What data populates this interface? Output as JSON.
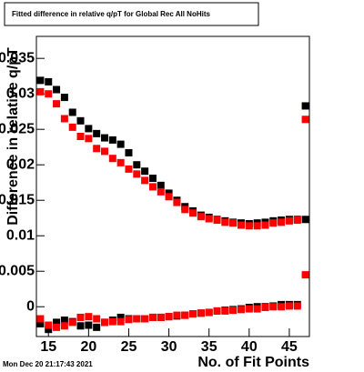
{
  "chart_data": {
    "type": "scatter",
    "title": "Fitted difference in relative q/pT for Global Rec All NoHits",
    "x_label": "No. of Fit Points",
    "y_label": "Difference in relative q/pT",
    "timestamp": "Mon Dec 20 21:17:43 2021",
    "x": [
      14,
      15,
      16,
      17,
      18,
      19,
      20,
      21,
      22,
      23,
      24,
      25,
      26,
      27,
      28,
      29,
      30,
      31,
      32,
      33,
      34,
      35,
      36,
      37,
      38,
      39,
      40,
      41,
      42,
      43,
      44,
      45,
      46,
      47
    ],
    "series": [
      {
        "color": "#000000",
        "values": [
          0.0319,
          0.0317,
          0.0306,
          0.0295,
          0.0274,
          0.0262,
          0.0251,
          0.0244,
          0.0238,
          0.0235,
          0.0229,
          0.0217,
          0.02,
          0.0191,
          0.0181,
          0.0171,
          0.016,
          0.015,
          0.0141,
          0.0135,
          0.0129,
          0.0126,
          0.0123,
          0.0121,
          0.0119,
          0.0118,
          0.0117,
          0.0118,
          0.0119,
          0.0121,
          0.0122,
          0.0123,
          0.0123,
          0.0283
        ]
      },
      {
        "color": "#ff0000",
        "values": [
          0.0303,
          0.03,
          0.0286,
          0.0265,
          0.0253,
          0.024,
          0.0237,
          0.0223,
          0.0219,
          0.0209,
          0.0203,
          0.0194,
          0.0187,
          0.0178,
          0.0169,
          0.0162,
          0.0155,
          0.0147,
          0.0137,
          0.0132,
          0.0127,
          0.0124,
          0.0122,
          0.0119,
          0.0118,
          0.0115,
          0.0114,
          0.0114,
          0.0115,
          0.0118,
          0.0119,
          0.0121,
          0.0122,
          0.0264
        ]
      },
      {
        "color": "#000000",
        "values": [
          -0.0024,
          -0.0032,
          -0.0022,
          -0.0019,
          -0.0021,
          -0.0027,
          -0.0026,
          -0.0029,
          -0.0022,
          -0.0019,
          -0.0015,
          -0.0017,
          -0.0017,
          -0.0017,
          -0.0015,
          -0.0015,
          -0.0014,
          -0.0013,
          -0.0012,
          -0.001,
          -0.0009,
          -0.0008,
          -0.0006,
          -0.0005,
          -0.0004,
          -0.0003,
          -0.0001,
          0.0,
          0.0,
          0.0001,
          0.0003,
          0.0003,
          0.0003,
          0.0123
        ]
      },
      {
        "color": "#ff0000",
        "values": [
          -0.0017,
          -0.0026,
          -0.0029,
          -0.0027,
          -0.0022,
          -0.0015,
          -0.0014,
          -0.0017,
          -0.0022,
          -0.0021,
          -0.0021,
          -0.0018,
          -0.0017,
          -0.0017,
          -0.0015,
          -0.0015,
          -0.0014,
          -0.0012,
          -0.0012,
          -0.001,
          -0.0009,
          -0.0008,
          -0.0006,
          -0.0006,
          -0.0005,
          -0.0004,
          -0.0003,
          -0.0003,
          -0.0001,
          0,
          0,
          0.0001,
          0.0001,
          0.0045
        ]
      }
    ],
    "xlim": [
      13.5,
      47.5
    ],
    "xticks": [
      15,
      20,
      25,
      30,
      35,
      40,
      45
    ],
    "ylim": [
      -0.0042,
      0.0381
    ],
    "yticks": [
      0,
      0.005,
      0.01,
      0.015,
      0.02,
      0.025,
      0.03,
      0.035
    ]
  }
}
